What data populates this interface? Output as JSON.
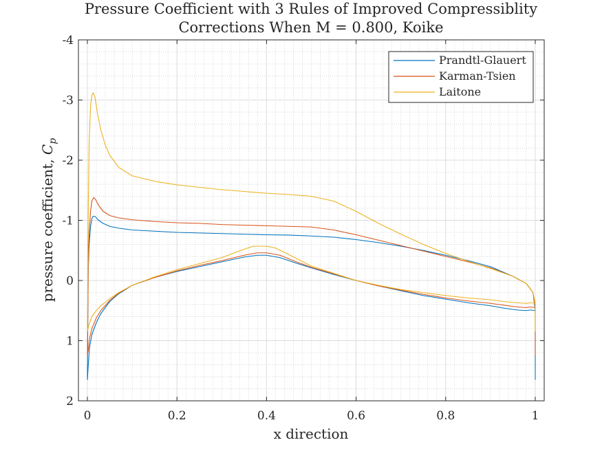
{
  "chart_data": {
    "type": "line",
    "title": [
      "Pressure Coefficient with 3 Rules of Improved Compressiblity",
      "Corrections When M = 0.800, Koike"
    ],
    "xlabel": "x direction",
    "ylabel": "pressure coefficient, ",
    "ylabel_symbol": "C",
    "ylabel_subscript": "p",
    "xlim": [
      -0.02,
      1.02
    ],
    "ylim": [
      -4,
      2
    ],
    "y_reversed": true,
    "grid": true,
    "minor_grid": true,
    "legend_position": "top-right",
    "x_ticks": [
      0,
      0.2,
      0.4,
      0.6,
      0.8,
      1
    ],
    "x_tick_labels": [
      "0",
      "0.2",
      "0.4",
      "0.6",
      "0.8",
      "1"
    ],
    "y_ticks": [
      -4,
      -3,
      -2,
      -1,
      0,
      1,
      2
    ],
    "y_tick_labels": [
      "-4",
      "-3",
      "-2",
      "-1",
      "0",
      "1",
      "2"
    ],
    "series": [
      {
        "name": "Prandtl-Glauert",
        "color": "#0072BD",
        "upper": [
          [
            0,
            1.65
          ],
          [
            0.001,
            0.6
          ],
          [
            0.002,
            -0.2
          ],
          [
            0.004,
            -0.6
          ],
          [
            0.007,
            -0.9
          ],
          [
            0.01,
            -1.03
          ],
          [
            0.013,
            -1.07
          ],
          [
            0.018,
            -1.06
          ],
          [
            0.025,
            -1.0
          ],
          [
            0.035,
            -0.95
          ],
          [
            0.05,
            -0.9
          ],
          [
            0.07,
            -0.87
          ],
          [
            0.1,
            -0.84
          ],
          [
            0.15,
            -0.82
          ],
          [
            0.2,
            -0.8
          ],
          [
            0.25,
            -0.79
          ],
          [
            0.3,
            -0.78
          ],
          [
            0.35,
            -0.77
          ],
          [
            0.4,
            -0.76
          ],
          [
            0.45,
            -0.755
          ],
          [
            0.5,
            -0.74
          ],
          [
            0.55,
            -0.72
          ],
          [
            0.6,
            -0.68
          ],
          [
            0.65,
            -0.63
          ],
          [
            0.7,
            -0.57
          ],
          [
            0.75,
            -0.5
          ],
          [
            0.8,
            -0.42
          ],
          [
            0.85,
            -0.33
          ],
          [
            0.9,
            -0.23
          ],
          [
            0.95,
            -0.07
          ],
          [
            0.98,
            0.05
          ],
          [
            0.995,
            0.2
          ],
          [
            1.0,
            0.5
          ],
          [
            1.0,
            1.65
          ]
        ],
        "lower": [
          [
            0,
            1.65
          ],
          [
            0.002,
            1.4
          ],
          [
            0.005,
            1.1
          ],
          [
            0.01,
            0.9
          ],
          [
            0.02,
            0.7
          ],
          [
            0.03,
            0.55
          ],
          [
            0.05,
            0.35
          ],
          [
            0.07,
            0.22
          ],
          [
            0.1,
            0.08
          ],
          [
            0.15,
            -0.05
          ],
          [
            0.2,
            -0.15
          ],
          [
            0.25,
            -0.23
          ],
          [
            0.3,
            -0.31
          ],
          [
            0.35,
            -0.39
          ],
          [
            0.38,
            -0.42
          ],
          [
            0.4,
            -0.42
          ],
          [
            0.43,
            -0.38
          ],
          [
            0.47,
            -0.28
          ],
          [
            0.5,
            -0.21
          ],
          [
            0.55,
            -0.1
          ],
          [
            0.6,
            0.0
          ],
          [
            0.65,
            0.09
          ],
          [
            0.7,
            0.17
          ],
          [
            0.75,
            0.25
          ],
          [
            0.8,
            0.31
          ],
          [
            0.85,
            0.37
          ],
          [
            0.9,
            0.42
          ],
          [
            0.93,
            0.46
          ],
          [
            0.96,
            0.49
          ],
          [
            0.98,
            0.5
          ],
          [
            0.99,
            0.49
          ],
          [
            1.0,
            0.5
          ]
        ]
      },
      {
        "name": "Karman-Tsien",
        "color": "#D95319",
        "upper": [
          [
            0,
            1.25
          ],
          [
            0.001,
            0.6
          ],
          [
            0.002,
            -0.3
          ],
          [
            0.004,
            -0.8
          ],
          [
            0.007,
            -1.15
          ],
          [
            0.01,
            -1.32
          ],
          [
            0.014,
            -1.38
          ],
          [
            0.018,
            -1.35
          ],
          [
            0.025,
            -1.25
          ],
          [
            0.035,
            -1.15
          ],
          [
            0.05,
            -1.08
          ],
          [
            0.07,
            -1.04
          ],
          [
            0.1,
            -1.01
          ],
          [
            0.15,
            -0.98
          ],
          [
            0.2,
            -0.96
          ],
          [
            0.25,
            -0.95
          ],
          [
            0.3,
            -0.93
          ],
          [
            0.35,
            -0.92
          ],
          [
            0.4,
            -0.91
          ],
          [
            0.45,
            -0.9
          ],
          [
            0.5,
            -0.89
          ],
          [
            0.55,
            -0.84
          ],
          [
            0.6,
            -0.76
          ],
          [
            0.65,
            -0.67
          ],
          [
            0.7,
            -0.58
          ],
          [
            0.75,
            -0.49
          ],
          [
            0.8,
            -0.4
          ],
          [
            0.85,
            -0.31
          ],
          [
            0.9,
            -0.21
          ],
          [
            0.95,
            -0.07
          ],
          [
            0.98,
            0.05
          ],
          [
            0.995,
            0.2
          ],
          [
            1.0,
            0.45
          ],
          [
            1.0,
            1.25
          ]
        ],
        "lower": [
          [
            0,
            1.25
          ],
          [
            0.002,
            1.15
          ],
          [
            0.005,
            0.95
          ],
          [
            0.01,
            0.8
          ],
          [
            0.02,
            0.62
          ],
          [
            0.03,
            0.5
          ],
          [
            0.05,
            0.33
          ],
          [
            0.07,
            0.21
          ],
          [
            0.1,
            0.08
          ],
          [
            0.15,
            -0.05
          ],
          [
            0.2,
            -0.16
          ],
          [
            0.25,
            -0.25
          ],
          [
            0.3,
            -0.33
          ],
          [
            0.35,
            -0.42
          ],
          [
            0.38,
            -0.46
          ],
          [
            0.4,
            -0.46
          ],
          [
            0.43,
            -0.42
          ],
          [
            0.47,
            -0.3
          ],
          [
            0.5,
            -0.22
          ],
          [
            0.55,
            -0.11
          ],
          [
            0.6,
            0.0
          ],
          [
            0.65,
            0.09
          ],
          [
            0.7,
            0.16
          ],
          [
            0.75,
            0.23
          ],
          [
            0.8,
            0.29
          ],
          [
            0.85,
            0.34
          ],
          [
            0.9,
            0.38
          ],
          [
            0.93,
            0.41
          ],
          [
            0.96,
            0.44
          ],
          [
            0.98,
            0.45
          ],
          [
            0.99,
            0.44
          ],
          [
            1.0,
            0.45
          ]
        ]
      },
      {
        "name": "Laitone",
        "color": "#EDB120",
        "upper": [
          [
            0,
            0.85
          ],
          [
            0.001,
            0.1
          ],
          [
            0.002,
            -1.2
          ],
          [
            0.004,
            -2.3
          ],
          [
            0.007,
            -2.9
          ],
          [
            0.01,
            -3.08
          ],
          [
            0.013,
            -3.12
          ],
          [
            0.017,
            -3.05
          ],
          [
            0.022,
            -2.8
          ],
          [
            0.03,
            -2.5
          ],
          [
            0.04,
            -2.25
          ],
          [
            0.05,
            -2.08
          ],
          [
            0.07,
            -1.88
          ],
          [
            0.1,
            -1.74
          ],
          [
            0.15,
            -1.65
          ],
          [
            0.2,
            -1.59
          ],
          [
            0.25,
            -1.55
          ],
          [
            0.3,
            -1.51
          ],
          [
            0.35,
            -1.48
          ],
          [
            0.4,
            -1.45
          ],
          [
            0.45,
            -1.43
          ],
          [
            0.5,
            -1.4
          ],
          [
            0.55,
            -1.32
          ],
          [
            0.6,
            -1.15
          ],
          [
            0.65,
            -0.95
          ],
          [
            0.7,
            -0.77
          ],
          [
            0.75,
            -0.6
          ],
          [
            0.8,
            -0.45
          ],
          [
            0.85,
            -0.32
          ],
          [
            0.9,
            -0.2
          ],
          [
            0.95,
            -0.07
          ],
          [
            0.98,
            0.05
          ],
          [
            0.995,
            0.2
          ],
          [
            1.0,
            0.38
          ],
          [
            1.0,
            0.85
          ]
        ],
        "lower": [
          [
            0,
            0.85
          ],
          [
            0.002,
            0.78
          ],
          [
            0.005,
            0.7
          ],
          [
            0.01,
            0.6
          ],
          [
            0.02,
            0.5
          ],
          [
            0.03,
            0.42
          ],
          [
            0.05,
            0.3
          ],
          [
            0.07,
            0.2
          ],
          [
            0.1,
            0.08
          ],
          [
            0.15,
            -0.06
          ],
          [
            0.2,
            -0.18
          ],
          [
            0.25,
            -0.28
          ],
          [
            0.3,
            -0.38
          ],
          [
            0.35,
            -0.52
          ],
          [
            0.37,
            -0.57
          ],
          [
            0.4,
            -0.57
          ],
          [
            0.42,
            -0.54
          ],
          [
            0.45,
            -0.43
          ],
          [
            0.5,
            -0.24
          ],
          [
            0.55,
            -0.12
          ],
          [
            0.6,
            0.0
          ],
          [
            0.65,
            0.08
          ],
          [
            0.7,
            0.15
          ],
          [
            0.75,
            0.2
          ],
          [
            0.8,
            0.25
          ],
          [
            0.85,
            0.29
          ],
          [
            0.9,
            0.32
          ],
          [
            0.93,
            0.35
          ],
          [
            0.96,
            0.37
          ],
          [
            0.98,
            0.38
          ],
          [
            0.99,
            0.37
          ],
          [
            1.0,
            0.38
          ]
        ]
      }
    ]
  }
}
